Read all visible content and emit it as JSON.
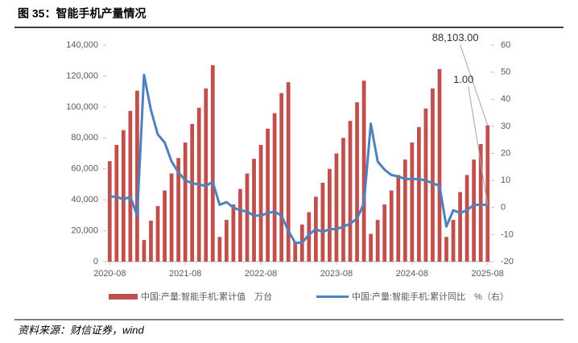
{
  "chart_data": {
    "type": "bar_line",
    "title": "图 35：智能手机产量情况",
    "source": "资料来源：财信证券，wind",
    "categories": [
      "2020-08",
      null,
      null,
      null,
      null,
      null,
      null,
      null,
      null,
      null,
      null,
      "2021-08",
      null,
      null,
      null,
      null,
      null,
      null,
      null,
      null,
      null,
      null,
      "2022-08",
      null,
      null,
      null,
      null,
      null,
      null,
      null,
      null,
      null,
      null,
      "2023-08",
      null,
      null,
      null,
      null,
      null,
      null,
      null,
      null,
      null,
      null,
      "2024-08",
      null,
      null,
      null,
      null,
      null,
      null,
      null,
      null,
      null,
      null,
      "2025-08"
    ],
    "series": [
      {
        "name": "中国:产量:智能手机:累计值　万台",
        "color": "#c0504d",
        "kind": "bar",
        "axis": "y",
        "values": [
          65000,
          75500,
          85000,
          97500,
          110500,
          14000,
          26500,
          36000,
          46000,
          57000,
          67000,
          77000,
          89000,
          99500,
          112000,
          127000,
          16000,
          27000,
          37000,
          47000,
          57000,
          66500,
          75500,
          86000,
          96000,
          109000,
          116000,
          13000,
          24000,
          32000,
          42000,
          51000,
          60000,
          70000,
          80000,
          91000,
          103000,
          117000,
          18000,
          27000,
          37000,
          46000,
          56000,
          66000,
          77000,
          87000,
          99000,
          112000,
          124500,
          16000,
          27000,
          45000,
          56000,
          66000,
          76000,
          88103
        ],
        "value_labels": [
          null,
          null,
          null,
          null,
          null,
          null,
          null,
          null,
          null,
          null,
          null,
          null,
          null,
          null,
          null,
          null,
          null,
          null,
          null,
          null,
          null,
          null,
          null,
          null,
          null,
          null,
          null,
          null,
          null,
          null,
          null,
          null,
          null,
          null,
          null,
          null,
          null,
          null,
          null,
          null,
          null,
          null,
          null,
          null,
          null,
          null,
          null,
          null,
          null,
          null,
          null,
          null,
          null,
          null,
          null,
          "88,103.00"
        ]
      },
      {
        "name": "中国:产量:智能手机:累计同比　%（右）",
        "color": "#4f81bd",
        "kind": "line",
        "axis": "y2",
        "values": [
          4,
          4,
          3,
          4,
          -3,
          49,
          36,
          27,
          24,
          17,
          13,
          10,
          9,
          8.5,
          8,
          9.5,
          1,
          2,
          0,
          -1,
          -1.5,
          -3,
          -3,
          -2,
          -1.5,
          -3,
          -8.6,
          -13,
          -13,
          -10,
          -8,
          -9,
          -8,
          -8,
          -7,
          -6,
          -4,
          1.6,
          31,
          17,
          14,
          12,
          11.5,
          10.5,
          10.5,
          10.5,
          10,
          9,
          8,
          -7,
          -1,
          -2,
          -1,
          1,
          1,
          1
        ],
        "value_labels": [
          null,
          null,
          null,
          null,
          null,
          null,
          null,
          null,
          null,
          null,
          null,
          null,
          null,
          null,
          null,
          null,
          null,
          null,
          null,
          null,
          null,
          null,
          null,
          null,
          null,
          null,
          null,
          null,
          null,
          null,
          null,
          null,
          null,
          null,
          null,
          null,
          null,
          null,
          null,
          null,
          null,
          null,
          null,
          null,
          null,
          null,
          null,
          null,
          null,
          null,
          null,
          null,
          null,
          null,
          null,
          "1.00"
        ]
      }
    ],
    "ylim": [
      0,
      140000
    ],
    "yticks": [
      0,
      {
        "value": 20000,
        "label": "20,000"
      },
      {
        "value": 40000,
        "label": "40,000"
      },
      {
        "value": 60000,
        "label": "60,000"
      },
      {
        "value": 80000,
        "label": "80,000"
      },
      {
        "value": 100000,
        "label": "100,000"
      },
      {
        "value": 120000,
        "label": "120,000"
      },
      {
        "value": 140000,
        "label": "140,000"
      }
    ],
    "y2lim": [
      -20,
      60
    ],
    "y2ticks": [
      -20,
      -10,
      0,
      10,
      20,
      30,
      40,
      50,
      60
    ],
    "legend": "bottom"
  }
}
